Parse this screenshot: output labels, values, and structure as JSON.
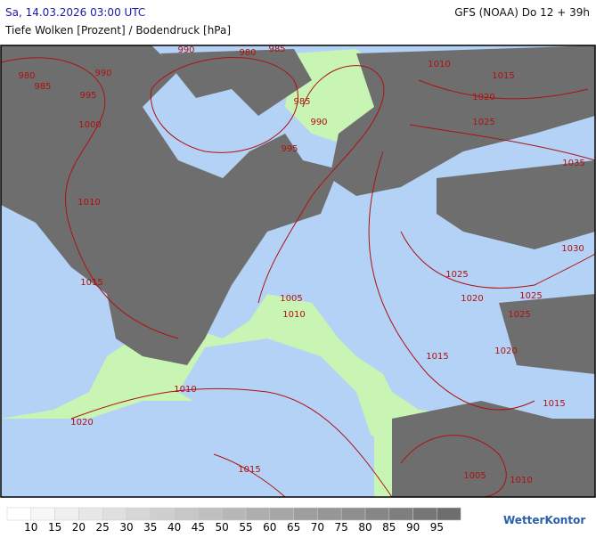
{
  "header": {
    "left": "Sa, 14.03.2026 03:00 UTC",
    "right": "GFS (NOAA) Do 12 + 39h",
    "subtitle": "Tiefe Wolken [Prozent] / Bodendruck [hPa]"
  },
  "isobar_labels": [
    980,
    985,
    990,
    990,
    980,
    985,
    995,
    1000,
    1010,
    1015,
    985,
    990,
    995,
    1010,
    1015,
    1020,
    1025,
    1035,
    1030,
    1025,
    1020,
    1025,
    1025,
    1005,
    1010,
    1020,
    1015,
    1010,
    1020,
    1015,
    1015,
    1005,
    1010
  ],
  "legend": {
    "values": [
      10,
      15,
      20,
      25,
      30,
      35,
      40,
      45,
      50,
      55,
      60,
      65,
      70,
      75,
      80,
      85,
      90,
      95
    ]
  },
  "brand": "WetterKontor"
}
